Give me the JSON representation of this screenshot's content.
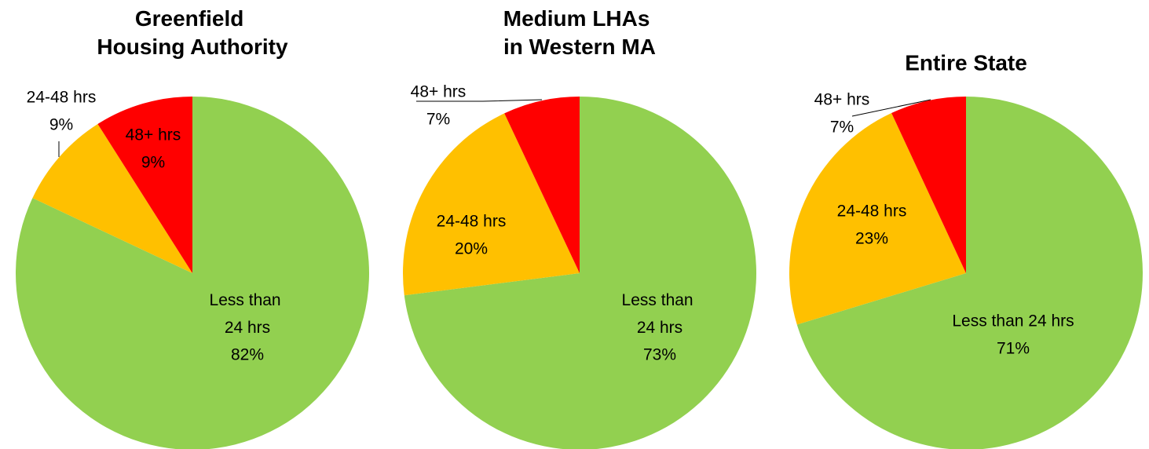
{
  "chart_data": [
    {
      "type": "pie",
      "title": "Greenfield Housing Authority",
      "categories": [
        "Less than 24 hrs",
        "24-48 hrs",
        "48+ hrs"
      ],
      "values": [
        82,
        9,
        9
      ],
      "value_labels": [
        "82%",
        "9%",
        "9%"
      ],
      "colors": [
        "#92d050",
        "#ffc000",
        "#ff0000"
      ]
    },
    {
      "type": "pie",
      "title": "Medium LHAs in Western MA",
      "categories": [
        "Less than 24 hrs",
        "24-48 hrs",
        "48+ hrs"
      ],
      "values": [
        73,
        20,
        7
      ],
      "value_labels": [
        "73%",
        "20%",
        "7%"
      ],
      "colors": [
        "#92d050",
        "#ffc000",
        "#ff0000"
      ]
    },
    {
      "type": "pie",
      "title": "Entire State",
      "categories": [
        "Less than 24 hrs",
        "24-48 hrs",
        "48+ hrs"
      ],
      "values": [
        71,
        23,
        7
      ],
      "value_labels": [
        "71%",
        "23%",
        "7%"
      ],
      "colors": [
        "#92d050",
        "#ffc000",
        "#ff0000"
      ]
    }
  ]
}
